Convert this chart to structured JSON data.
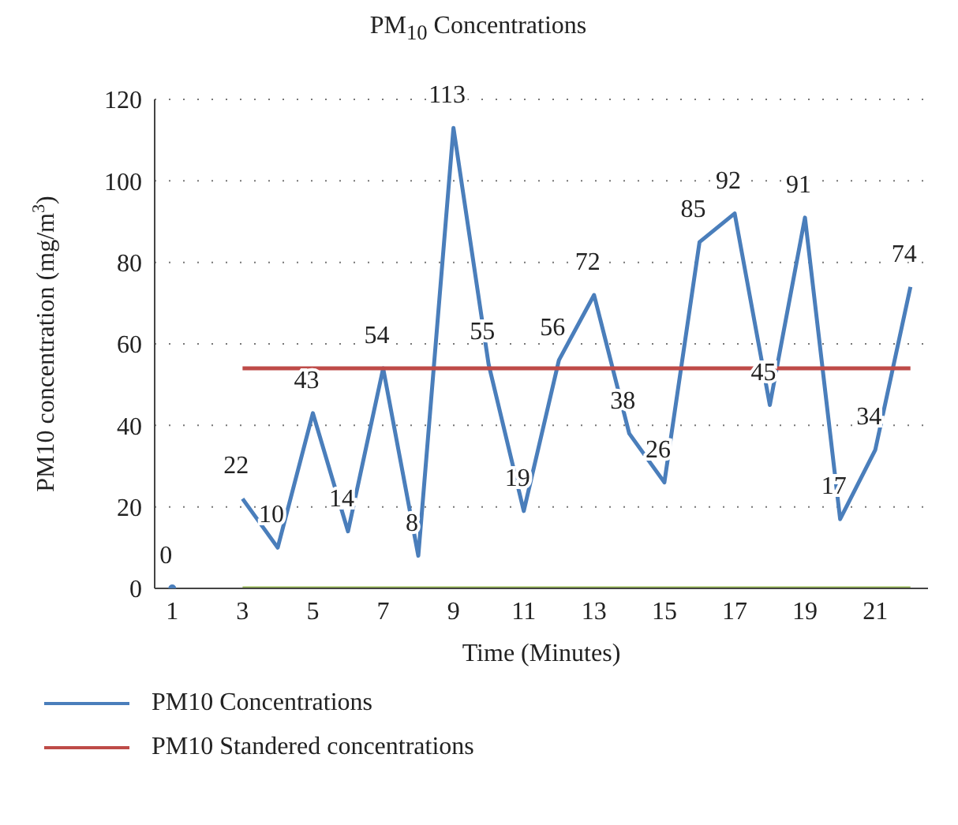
{
  "chart_data": {
    "type": "line",
    "title": "PM$_{10}$ Concentrations",
    "xlabel": "Time (Minutes)",
    "ylabel": "PM10 concentration (mg/m$^{3}$)",
    "x": [
      1,
      2,
      3,
      4,
      5,
      6,
      7,
      8,
      9,
      10,
      11,
      12,
      13,
      14,
      15,
      16,
      17,
      18,
      19,
      20,
      21,
      22
    ],
    "xlim": [
      0.5,
      22.5
    ],
    "xticks": [
      1,
      3,
      5,
      7,
      9,
      11,
      13,
      15,
      17,
      19,
      21
    ],
    "series": [
      {
        "name": "PM10 Concentrations",
        "color": "#4a7ebb",
        "values": [
          0,
          null,
          22,
          10,
          43,
          14,
          54,
          8,
          113,
          55,
          19,
          56,
          72,
          38,
          26,
          85,
          92,
          45,
          91,
          17,
          34,
          74
        ],
        "value_labels": [
          "0",
          null,
          "22",
          "10",
          "43",
          "14",
          "54",
          "8",
          "113",
          "55",
          "19",
          "56",
          "72",
          "38",
          "26",
          "85",
          "92",
          "45",
          "91",
          "17",
          "34",
          "74"
        ]
      },
      {
        "name": "PM10 Standered concentrations",
        "color": "#be4b48",
        "values": [
          null,
          null,
          54,
          54,
          54,
          54,
          54,
          54,
          54,
          54,
          54,
          54,
          54,
          54,
          54,
          54,
          54,
          54,
          54,
          54,
          54,
          54
        ]
      },
      {
        "color": "#98b954",
        "values": [
          null,
          null,
          0,
          0,
          0,
          0,
          0,
          0,
          0,
          0,
          0,
          0,
          0,
          0,
          0,
          0,
          0,
          0,
          0,
          0,
          0,
          0
        ]
      }
    ],
    "ylim": [
      0,
      120
    ],
    "yticks": [
      0,
      20,
      40,
      60,
      80,
      100,
      120
    ],
    "grid": "y",
    "legend": "bottom",
    "marker": "none",
    "line_style": "solid"
  }
}
